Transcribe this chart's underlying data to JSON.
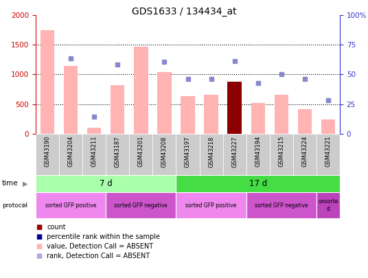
{
  "title": "GDS1633 / 134434_at",
  "samples": [
    "GSM43190",
    "GSM43204",
    "GSM43211",
    "GSM43187",
    "GSM43201",
    "GSM43208",
    "GSM43197",
    "GSM43218",
    "GSM43227",
    "GSM43194",
    "GSM43215",
    "GSM43224",
    "GSM43221"
  ],
  "bar_values": [
    1750,
    1150,
    100,
    820,
    1470,
    1040,
    640,
    660,
    880,
    520,
    660,
    420,
    240
  ],
  "bar_colors": [
    "#ffb3b3",
    "#ffb3b3",
    "#ffb3b3",
    "#ffb3b3",
    "#ffb3b3",
    "#ffb3b3",
    "#ffb3b3",
    "#ffb3b3",
    "#8b0000",
    "#ffb3b3",
    "#ffb3b3",
    "#ffb3b3",
    "#ffb3b3"
  ],
  "rank_values": [
    null,
    1270,
    290,
    1170,
    null,
    1210,
    930,
    920,
    1230,
    855,
    1000,
    930,
    570
  ],
  "ylim_left": [
    0,
    2000
  ],
  "ylim_right": [
    0,
    100
  ],
  "yticks_left": [
    0,
    500,
    1000,
    1500,
    2000
  ],
  "yticks_right": [
    0,
    25,
    50,
    75,
    100
  ],
  "left_color": "#cc0000",
  "right_color": "#3333cc",
  "time_groups": [
    {
      "label": "7 d",
      "start": 0,
      "end": 6,
      "color": "#aaffaa"
    },
    {
      "label": "17 d",
      "start": 6,
      "end": 13,
      "color": "#44dd44"
    }
  ],
  "protocol_groups": [
    {
      "label": "sorted GFP positive",
      "start": 0,
      "end": 3,
      "color": "#ee88ee"
    },
    {
      "label": "sorted GFP negative",
      "start": 3,
      "end": 6,
      "color": "#cc55cc"
    },
    {
      "label": "sorted GFP positive",
      "start": 6,
      "end": 9,
      "color": "#ee88ee"
    },
    {
      "label": "sorted GFP negative",
      "start": 9,
      "end": 12,
      "color": "#cc55cc"
    },
    {
      "label": "unsorte\nd",
      "start": 12,
      "end": 13,
      "color": "#bb44bb"
    }
  ],
  "legend_items": [
    {
      "label": "count",
      "color": "#990000"
    },
    {
      "label": "percentile rank within the sample",
      "color": "#000099"
    },
    {
      "label": "value, Detection Call = ABSENT",
      "color": "#ffb3b3"
    },
    {
      "label": "rank, Detection Call = ABSENT",
      "color": "#aaaadd"
    }
  ],
  "rank_dot_color": "#8888cc",
  "bar_absent_color": "#ffb3b3",
  "sample_bg_color": "#cccccc"
}
